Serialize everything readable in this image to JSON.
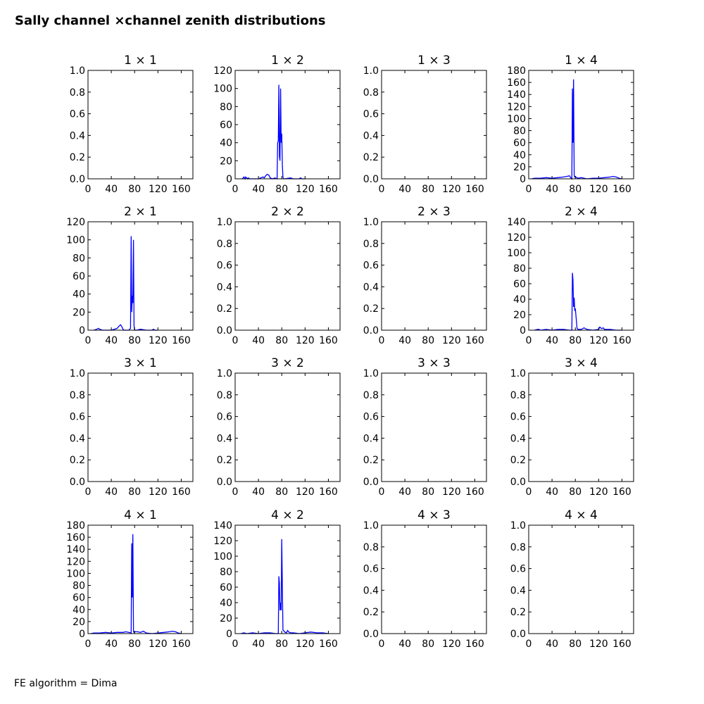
{
  "figure": {
    "title": "Sally channel ×channel zenith distributions",
    "footer": "FE algorithm = Dima"
  },
  "chart_data": [
    {
      "type": "line",
      "title": "1  × 1",
      "xlim": [
        0,
        180
      ],
      "ylim": [
        0,
        1
      ],
      "xticks": [
        0,
        40,
        80,
        120,
        160
      ],
      "yticks": [
        "0.0",
        "0.2",
        "0.4",
        "0.6",
        "0.8",
        "1.0"
      ],
      "color": "#0000ff",
      "x": [],
      "y": []
    },
    {
      "type": "line",
      "title": "1  × 2",
      "xlim": [
        0,
        180
      ],
      "ylim": [
        0,
        120
      ],
      "xticks": [
        0,
        40,
        80,
        120,
        160
      ],
      "yticks": [
        "0",
        "20",
        "40",
        "60",
        "80",
        "100",
        "120"
      ],
      "color": "#0000ff",
      "x": [
        12,
        14,
        15,
        17,
        18,
        20,
        21,
        23,
        25,
        30,
        40,
        48,
        50,
        52,
        55,
        58,
        60,
        65,
        68,
        72,
        73,
        74,
        75,
        76,
        77,
        78,
        79,
        80,
        81,
        82,
        83,
        85,
        95,
        100,
        110,
        112,
        115,
        120
      ],
      "y": [
        0,
        1,
        2,
        0,
        2,
        1,
        0,
        1,
        0,
        0,
        0,
        2,
        1,
        3,
        5,
        4,
        1,
        0,
        1,
        0,
        40,
        42,
        104,
        25,
        20,
        100,
        40,
        50,
        15,
        2,
        0,
        0,
        1,
        0,
        0,
        1,
        0,
        0
      ]
    },
    {
      "type": "line",
      "title": "1  × 3",
      "xlim": [
        0,
        180
      ],
      "ylim": [
        0,
        1
      ],
      "xticks": [
        0,
        40,
        80,
        120,
        160
      ],
      "yticks": [
        "0.0",
        "0.2",
        "0.4",
        "0.6",
        "0.8",
        "1.0"
      ],
      "color": "#0000ff",
      "x": [],
      "y": []
    },
    {
      "type": "line",
      "title": "1  × 4",
      "xlim": [
        0,
        180
      ],
      "ylim": [
        0,
        180
      ],
      "xticks": [
        0,
        40,
        80,
        120,
        160
      ],
      "yticks": [
        "0",
        "20",
        "40",
        "60",
        "80",
        "100",
        "120",
        "140",
        "160",
        "180"
      ],
      "color": "#0000ff",
      "x": [
        5,
        10,
        20,
        30,
        40,
        50,
        60,
        65,
        70,
        72,
        74,
        75,
        76,
        77,
        78,
        79,
        80,
        82,
        85,
        90,
        100,
        110,
        120,
        130,
        140,
        145,
        150,
        155,
        160
      ],
      "y": [
        0,
        1,
        1,
        2,
        1,
        2,
        3,
        4,
        5,
        2,
        0,
        150,
        60,
        165,
        5,
        3,
        4,
        2,
        1,
        2,
        0,
        1,
        1,
        2,
        3,
        4,
        3,
        1,
        0
      ]
    },
    {
      "type": "line",
      "title": "2  × 1",
      "xlim": [
        0,
        180
      ],
      "ylim": [
        0,
        120
      ],
      "xticks": [
        0,
        40,
        80,
        120,
        160
      ],
      "yticks": [
        "0",
        "20",
        "40",
        "60",
        "80",
        "100",
        "120"
      ],
      "color": "#0000ff",
      "x": [
        10,
        15,
        18,
        20,
        25,
        30,
        40,
        45,
        50,
        54,
        56,
        58,
        60,
        62,
        65,
        70,
        73,
        74,
        75,
        76,
        77,
        78,
        79,
        80,
        81,
        83,
        90,
        100,
        110,
        112,
        115,
        120
      ],
      "y": [
        0,
        1,
        2,
        1,
        0,
        0,
        0,
        1,
        2,
        5,
        6,
        4,
        1,
        0,
        0,
        0,
        2,
        104,
        20,
        38,
        30,
        100,
        5,
        0,
        0,
        0,
        1,
        0,
        0,
        1,
        0,
        0
      ]
    },
    {
      "type": "line",
      "title": "2  × 2",
      "xlim": [
        0,
        180
      ],
      "ylim": [
        0,
        1
      ],
      "xticks": [
        0,
        40,
        80,
        120,
        160
      ],
      "yticks": [
        "0.0",
        "0.2",
        "0.4",
        "0.6",
        "0.8",
        "1.0"
      ],
      "color": "#0000ff",
      "x": [],
      "y": []
    },
    {
      "type": "line",
      "title": "2  × 3",
      "xlim": [
        0,
        180
      ],
      "ylim": [
        0,
        1
      ],
      "xticks": [
        0,
        40,
        80,
        120,
        160
      ],
      "yticks": [
        "0.0",
        "0.2",
        "0.4",
        "0.6",
        "0.8",
        "1.0"
      ],
      "color": "#0000ff",
      "x": [],
      "y": []
    },
    {
      "type": "line",
      "title": "2  × 4",
      "xlim": [
        0,
        180
      ],
      "ylim": [
        0,
        140
      ],
      "xticks": [
        0,
        40,
        80,
        120,
        160
      ],
      "yticks": [
        "0",
        "20",
        "40",
        "60",
        "80",
        "100",
        "120",
        "140"
      ],
      "color": "#0000ff",
      "x": [
        10,
        15,
        18,
        20,
        30,
        40,
        50,
        60,
        70,
        72,
        74,
        75,
        76,
        77,
        78,
        79,
        80,
        81,
        83,
        85,
        90,
        95,
        100,
        110,
        120,
        122,
        125,
        128,
        130,
        140,
        150,
        160
      ],
      "y": [
        0,
        1,
        1,
        0,
        1,
        0,
        1,
        1,
        0,
        0,
        0,
        74,
        65,
        30,
        42,
        25,
        28,
        20,
        2,
        1,
        1,
        3,
        1,
        0,
        1,
        4,
        2,
        3,
        1,
        1,
        0,
        0
      ]
    },
    {
      "type": "line",
      "title": "3  × 1",
      "xlim": [
        0,
        180
      ],
      "ylim": [
        0,
        1
      ],
      "xticks": [
        0,
        40,
        80,
        120,
        160
      ],
      "yticks": [
        "0.0",
        "0.2",
        "0.4",
        "0.6",
        "0.8",
        "1.0"
      ],
      "color": "#0000ff",
      "x": [],
      "y": []
    },
    {
      "type": "line",
      "title": "3  × 2",
      "xlim": [
        0,
        180
      ],
      "ylim": [
        0,
        1
      ],
      "xticks": [
        0,
        40,
        80,
        120,
        160
      ],
      "yticks": [
        "0.0",
        "0.2",
        "0.4",
        "0.6",
        "0.8",
        "1.0"
      ],
      "color": "#0000ff",
      "x": [],
      "y": []
    },
    {
      "type": "line",
      "title": "3  × 3",
      "xlim": [
        0,
        180
      ],
      "ylim": [
        0,
        1
      ],
      "xticks": [
        0,
        40,
        80,
        120,
        160
      ],
      "yticks": [
        "0.0",
        "0.2",
        "0.4",
        "0.6",
        "0.8",
        "1.0"
      ],
      "color": "#0000ff",
      "x": [],
      "y": []
    },
    {
      "type": "line",
      "title": "3  × 4",
      "xlim": [
        0,
        180
      ],
      "ylim": [
        0,
        1
      ],
      "xticks": [
        0,
        40,
        80,
        120,
        160
      ],
      "yticks": [
        "0.0",
        "0.2",
        "0.4",
        "0.6",
        "0.8",
        "1.0"
      ],
      "color": "#0000ff",
      "x": [],
      "y": []
    },
    {
      "type": "line",
      "title": "4  × 1",
      "xlim": [
        0,
        180
      ],
      "ylim": [
        0,
        180
      ],
      "xticks": [
        0,
        40,
        80,
        120,
        160
      ],
      "yticks": [
        "0",
        "20",
        "40",
        "60",
        "80",
        "100",
        "120",
        "140",
        "160",
        "180"
      ],
      "color": "#0000ff",
      "x": [
        5,
        10,
        20,
        30,
        40,
        50,
        60,
        65,
        70,
        74,
        75,
        76,
        77,
        78,
        79,
        80,
        85,
        90,
        95,
        100,
        110,
        120,
        130,
        140,
        145,
        150,
        155,
        160
      ],
      "y": [
        0,
        1,
        1,
        2,
        1,
        2,
        2,
        3,
        2,
        1,
        150,
        60,
        165,
        4,
        2,
        3,
        3,
        2,
        4,
        1,
        0,
        1,
        2,
        3,
        4,
        3,
        1,
        0
      ]
    },
    {
      "type": "line",
      "title": "4  × 2",
      "xlim": [
        0,
        180
      ],
      "ylim": [
        0,
        140
      ],
      "xticks": [
        0,
        40,
        80,
        120,
        160
      ],
      "yticks": [
        "0",
        "20",
        "40",
        "60",
        "80",
        "100",
        "120",
        "140"
      ],
      "color": "#0000ff",
      "x": [
        10,
        15,
        20,
        30,
        40,
        50,
        60,
        70,
        72,
        74,
        75,
        76,
        77,
        78,
        79,
        80,
        82,
        85,
        88,
        90,
        92,
        95,
        100,
        110,
        120,
        130,
        140,
        150,
        160
      ],
      "y": [
        0,
        1,
        0,
        1,
        0,
        1,
        1,
        0,
        0,
        0,
        74,
        65,
        30,
        40,
        30,
        122,
        5,
        2,
        1,
        4,
        2,
        1,
        1,
        0,
        1,
        2,
        1,
        1,
        0
      ]
    },
    {
      "type": "line",
      "title": "4  × 3",
      "xlim": [
        0,
        180
      ],
      "ylim": [
        0,
        1
      ],
      "xticks": [
        0,
        40,
        80,
        120,
        160
      ],
      "yticks": [
        "0.0",
        "0.2",
        "0.4",
        "0.6",
        "0.8",
        "1.0"
      ],
      "color": "#0000ff",
      "x": [],
      "y": []
    },
    {
      "type": "line",
      "title": "4  × 4",
      "xlim": [
        0,
        180
      ],
      "ylim": [
        0,
        1
      ],
      "xticks": [
        0,
        40,
        80,
        120,
        160
      ],
      "yticks": [
        "0.0",
        "0.2",
        "0.4",
        "0.6",
        "0.8",
        "1.0"
      ],
      "color": "#0000ff",
      "x": [],
      "y": []
    }
  ]
}
